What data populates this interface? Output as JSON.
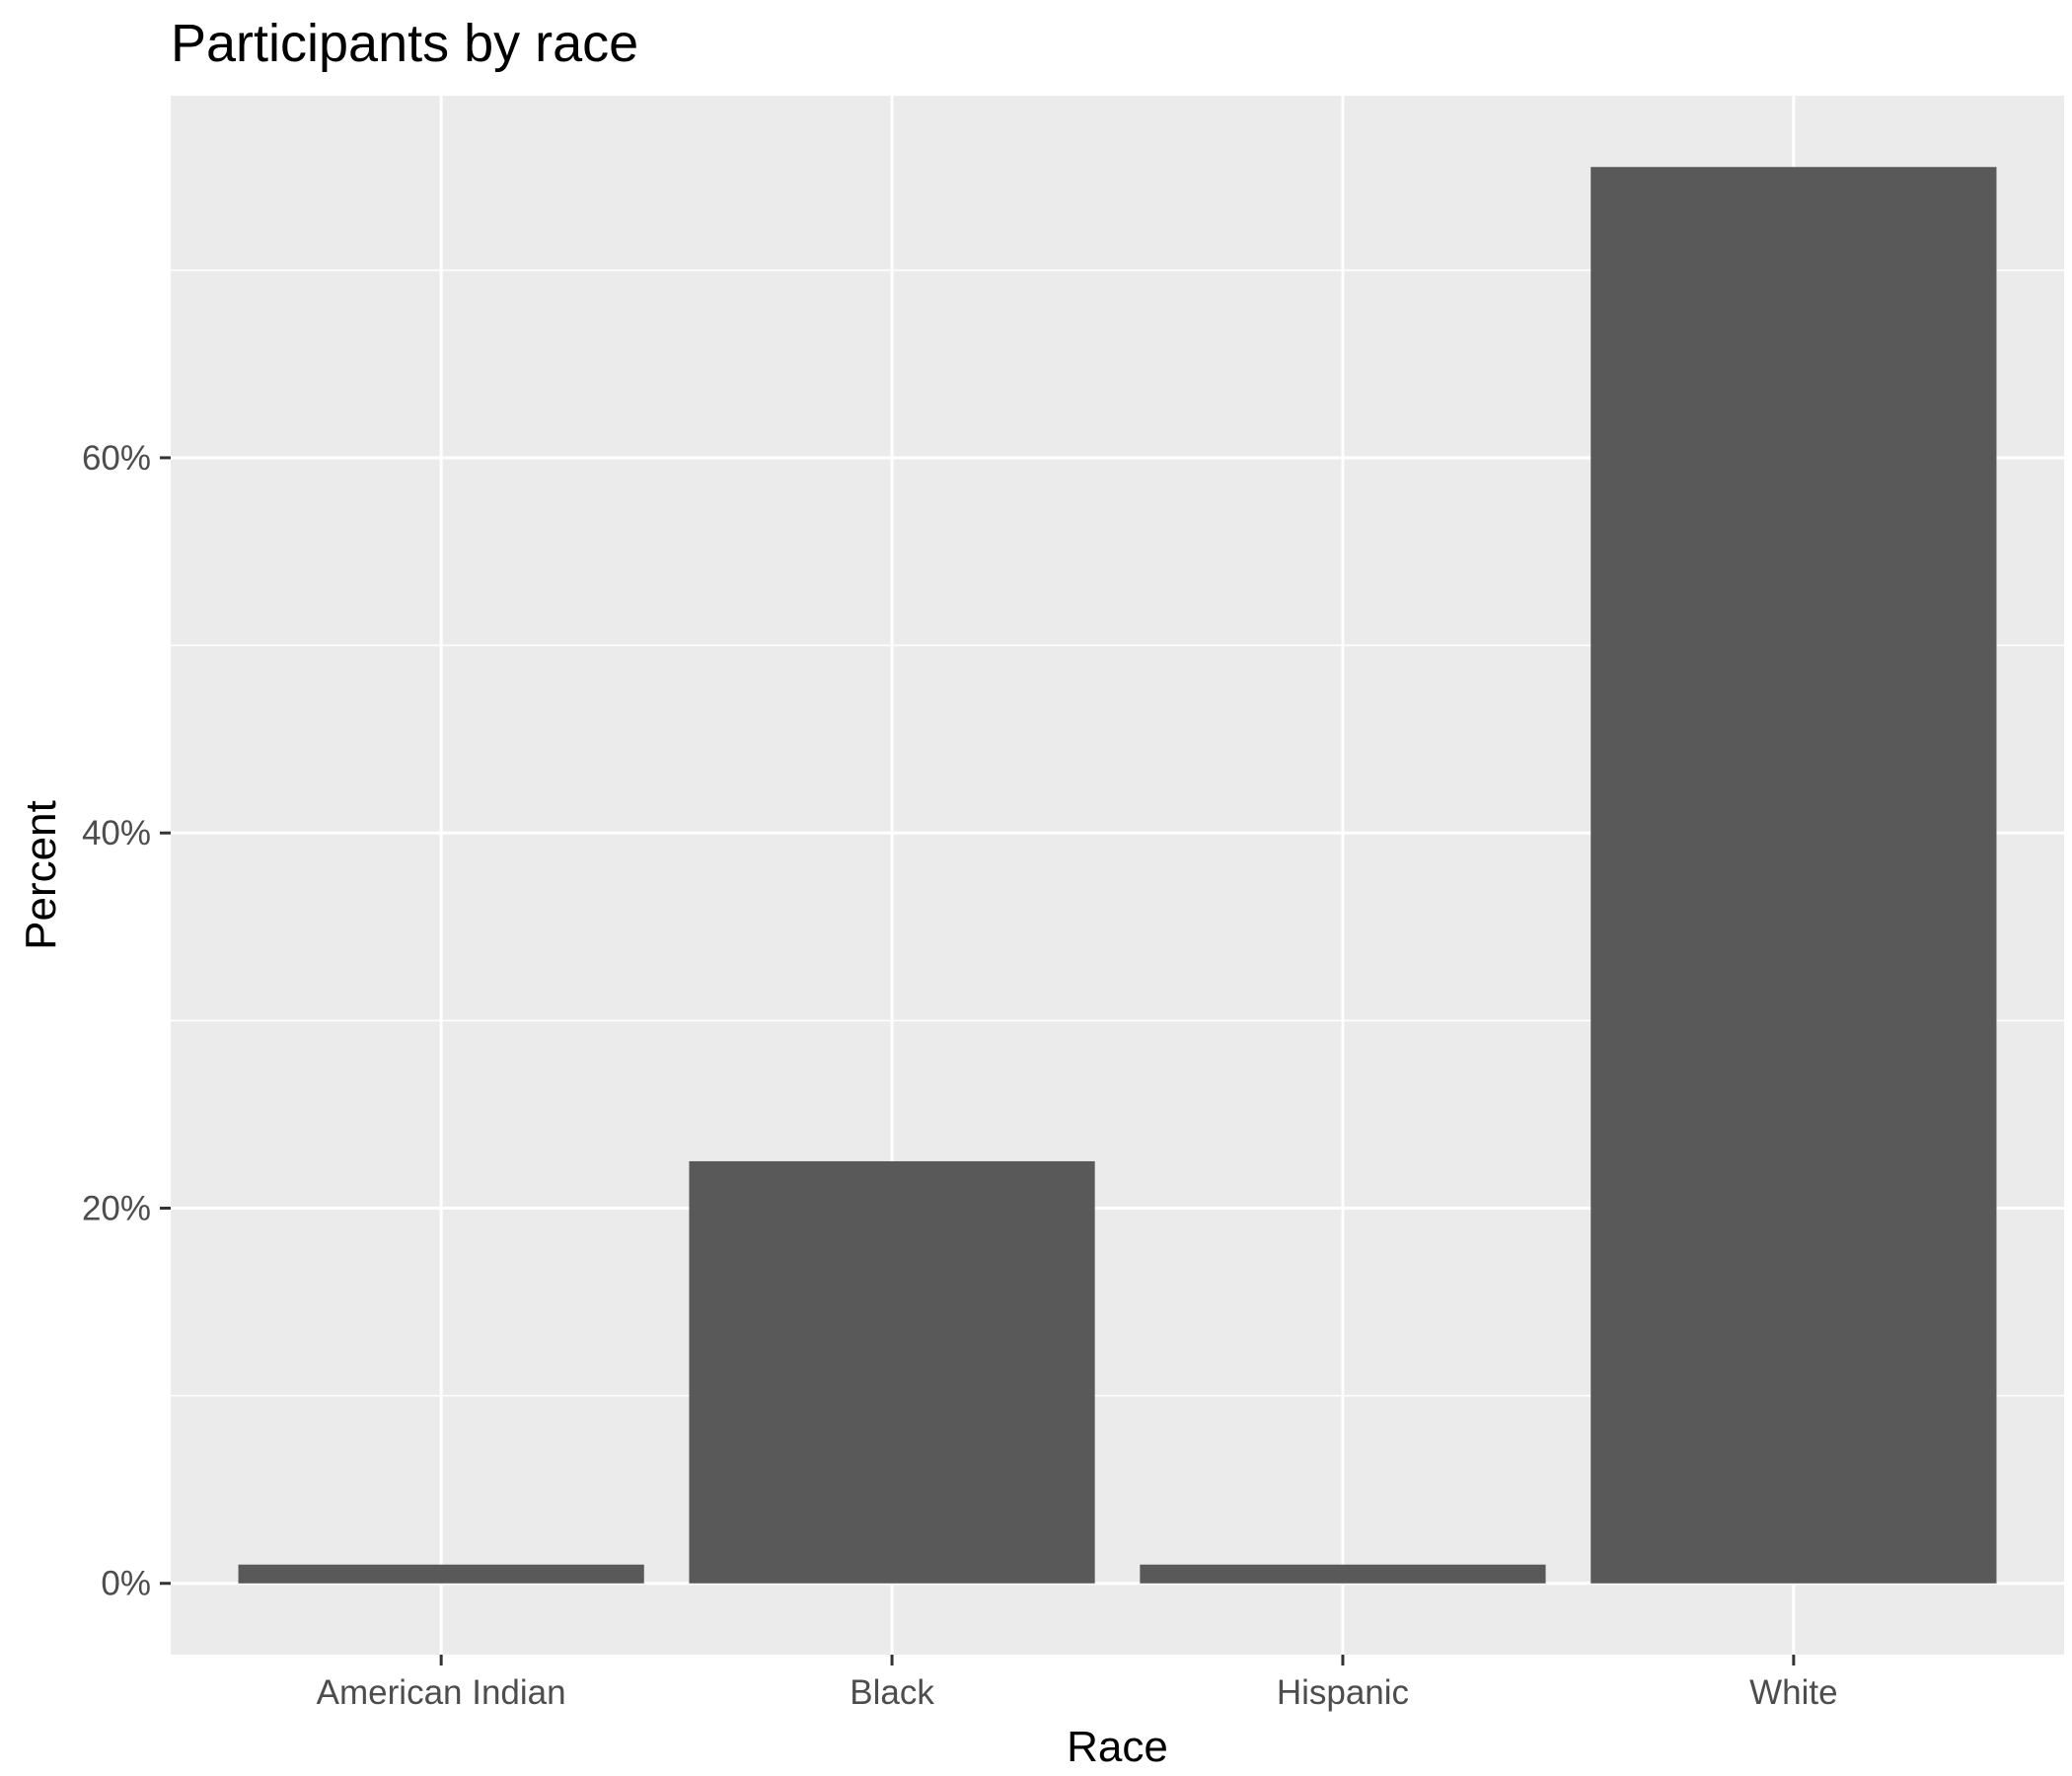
{
  "chart_data": {
    "type": "bar",
    "title": "Participants by race",
    "xlabel": "Race",
    "ylabel": "Percent",
    "categories": [
      "American Indian",
      "Black",
      "Hispanic",
      "White"
    ],
    "values": [
      1.0,
      22.5,
      1.0,
      75.5
    ],
    "ylim": [
      -3.8,
      79.3
    ],
    "y_ticks": [
      0,
      20,
      40,
      60
    ],
    "y_tick_labels": [
      "0%",
      "20%",
      "40%",
      "60%"
    ],
    "y_minor_ticks": [
      10,
      30,
      50,
      70
    ],
    "grid": true,
    "legend": "none",
    "colors": {
      "panel": "#ebebeb",
      "grid": "#ffffff",
      "bar": "#595959",
      "tick": "#333333"
    }
  }
}
